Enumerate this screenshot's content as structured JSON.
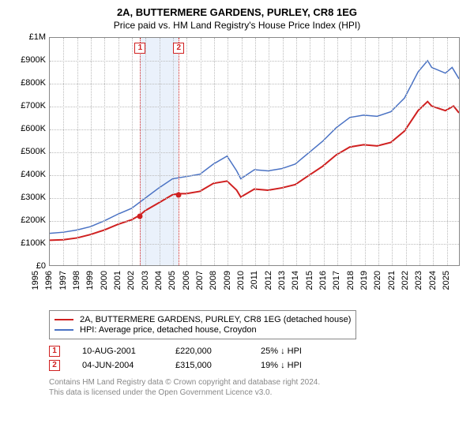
{
  "title": {
    "line1": "2A, BUTTERMERE GARDENS, PURLEY, CR8 1EG",
    "line2": "Price paid vs. HM Land Registry's House Price Index (HPI)"
  },
  "chart": {
    "type": "line",
    "background_color": "#ffffff",
    "grid_color": "#bbbbbb",
    "border_color": "#888888",
    "x_years": [
      1995,
      1996,
      1997,
      1998,
      1999,
      2000,
      2001,
      2002,
      2003,
      2004,
      2005,
      2006,
      2007,
      2008,
      2009,
      2010,
      2011,
      2012,
      2013,
      2014,
      2015,
      2016,
      2017,
      2018,
      2019,
      2020,
      2021,
      2022,
      2023,
      2024,
      2025
    ],
    "y_ticks": [
      0,
      100000,
      200000,
      300000,
      400000,
      500000,
      600000,
      700000,
      800000,
      900000,
      1000000
    ],
    "y_labels": [
      "£0",
      "£100K",
      "£200K",
      "£300K",
      "£400K",
      "£500K",
      "£600K",
      "£700K",
      "£800K",
      "£900K",
      "£1M"
    ],
    "ymin": 0,
    "ymax": 1000000,
    "series": [
      {
        "name": "property",
        "label": "2A, BUTTERMERE GARDENS, PURLEY, CR8 1EG (detached house)",
        "color": "#d02020",
        "width": 2,
        "data": [
          [
            1995,
            110000
          ],
          [
            1996,
            112000
          ],
          [
            1997,
            120000
          ],
          [
            1998,
            135000
          ],
          [
            1999,
            155000
          ],
          [
            2000,
            180000
          ],
          [
            2001,
            200000
          ],
          [
            2001.6,
            220000
          ],
          [
            2002,
            240000
          ],
          [
            2003,
            275000
          ],
          [
            2004,
            310000
          ],
          [
            2004.42,
            315000
          ],
          [
            2005,
            315000
          ],
          [
            2006,
            325000
          ],
          [
            2007,
            360000
          ],
          [
            2008,
            370000
          ],
          [
            2008.7,
            330000
          ],
          [
            2009,
            300000
          ],
          [
            2010,
            335000
          ],
          [
            2011,
            330000
          ],
          [
            2012,
            340000
          ],
          [
            2013,
            355000
          ],
          [
            2014,
            395000
          ],
          [
            2015,
            435000
          ],
          [
            2016,
            485000
          ],
          [
            2017,
            520000
          ],
          [
            2018,
            530000
          ],
          [
            2019,
            525000
          ],
          [
            2020,
            540000
          ],
          [
            2021,
            590000
          ],
          [
            2022,
            680000
          ],
          [
            2022.7,
            720000
          ],
          [
            2023,
            700000
          ],
          [
            2024,
            680000
          ],
          [
            2024.6,
            700000
          ],
          [
            2025,
            670000
          ]
        ]
      },
      {
        "name": "hpi",
        "label": "HPI: Average price, detached house, Croydon",
        "color": "#4a72c4",
        "width": 1.5,
        "data": [
          [
            1995,
            140000
          ],
          [
            1996,
            145000
          ],
          [
            1997,
            155000
          ],
          [
            1998,
            170000
          ],
          [
            1999,
            195000
          ],
          [
            2000,
            225000
          ],
          [
            2001,
            250000
          ],
          [
            2002,
            295000
          ],
          [
            2003,
            340000
          ],
          [
            2004,
            380000
          ],
          [
            2005,
            390000
          ],
          [
            2006,
            400000
          ],
          [
            2007,
            445000
          ],
          [
            2008,
            480000
          ],
          [
            2008.7,
            415000
          ],
          [
            2009,
            380000
          ],
          [
            2010,
            420000
          ],
          [
            2011,
            415000
          ],
          [
            2012,
            425000
          ],
          [
            2013,
            445000
          ],
          [
            2014,
            495000
          ],
          [
            2015,
            545000
          ],
          [
            2016,
            605000
          ],
          [
            2017,
            650000
          ],
          [
            2018,
            660000
          ],
          [
            2019,
            655000
          ],
          [
            2020,
            675000
          ],
          [
            2021,
            735000
          ],
          [
            2022,
            850000
          ],
          [
            2022.7,
            900000
          ],
          [
            2023,
            870000
          ],
          [
            2024,
            845000
          ],
          [
            2024.5,
            870000
          ],
          [
            2025,
            820000
          ]
        ]
      }
    ],
    "band": {
      "start_year": 2001.6,
      "end_year": 2004.42,
      "color": "#eaf1fb"
    },
    "markers": [
      {
        "id": "1",
        "year": 2001.6,
        "price": 220000
      },
      {
        "id": "2",
        "year": 2004.42,
        "price": 315000
      }
    ]
  },
  "legend": {
    "rows": [
      {
        "color": "#d02020",
        "label": "2A, BUTTERMERE GARDENS, PURLEY, CR8 1EG (detached house)"
      },
      {
        "color": "#4a72c4",
        "label": "HPI: Average price, detached house, Croydon"
      }
    ]
  },
  "transactions": [
    {
      "id": "1",
      "date": "10-AUG-2001",
      "price": "£220,000",
      "diff": "25% ↓ HPI"
    },
    {
      "id": "2",
      "date": "04-JUN-2004",
      "price": "£315,000",
      "diff": "19% ↓ HPI"
    }
  ],
  "footnote": {
    "line1": "Contains HM Land Registry data © Crown copyright and database right 2024.",
    "line2": "This data is licensed under the Open Government Licence v3.0."
  }
}
